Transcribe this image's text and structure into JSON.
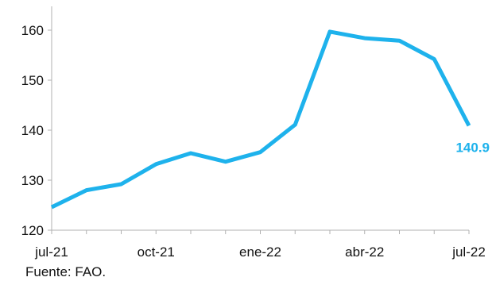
{
  "chart_data": {
    "type": "line",
    "title": "",
    "xlabel": "",
    "ylabel": "",
    "x": [
      "jul-21",
      "ago-21",
      "sep-21",
      "oct-21",
      "nov-21",
      "dic-21",
      "ene-22",
      "feb-22",
      "mar-22",
      "abr-22",
      "may-22",
      "jun-22",
      "jul-22"
    ],
    "x_tick_labels": [
      "jul-21",
      "oct-21",
      "ene-22",
      "abr-22",
      "jul-22"
    ],
    "series": [
      {
        "values": [
          124.6,
          128.0,
          129.2,
          133.2,
          135.4,
          133.7,
          135.6,
          141.1,
          159.7,
          158.4,
          157.9,
          154.2,
          140.9
        ],
        "color": "#1EB2EC"
      }
    ],
    "ylim": [
      120,
      165
    ],
    "y_ticks": [
      120,
      130,
      140,
      150,
      160
    ],
    "grid": false,
    "legend": "none",
    "annotations": [
      {
        "text": "140.9",
        "color": "#1EB2EC"
      }
    ]
  },
  "footer": {
    "source": "Fuente: FAO."
  },
  "colors": {
    "series_line": "#1EB2EC",
    "axis": "#B0B0B0",
    "text": "#111111"
  }
}
